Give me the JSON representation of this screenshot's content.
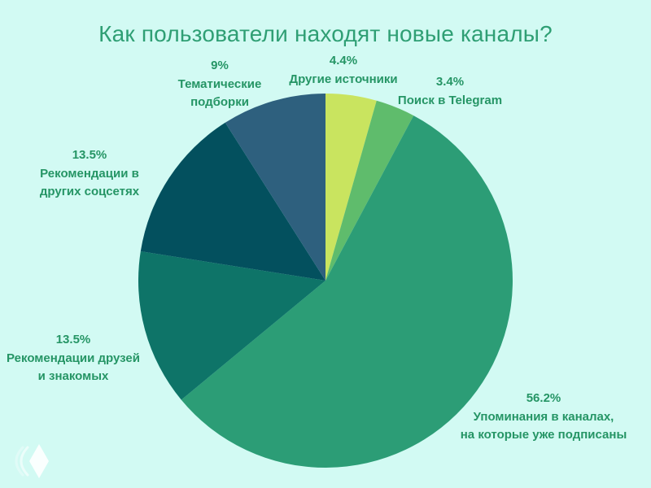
{
  "title": "Как пользователи находят новые каналы?",
  "colors": {
    "background": "#d2faf3",
    "title": "#2f9f74",
    "label": "#259565",
    "logo": "#ffffff"
  },
  "chart_data": {
    "type": "pie",
    "title": "Как пользователи находят новые каналы?",
    "start_angle_deg": 0,
    "direction": "clockwise",
    "legend_position": "none",
    "slices": [
      {
        "label": "Другие источники",
        "pct_label": "4.4%",
        "value": 4.4,
        "color": "#c9e45f",
        "lines": [
          "Другие источники"
        ]
      },
      {
        "label": "Поиск в Telegram",
        "pct_label": "3.4%",
        "value": 3.4,
        "color": "#5fbc6c",
        "lines": [
          "Поиск в Telegram"
        ]
      },
      {
        "label": "Упоминания в каналах, на которые уже подписаны",
        "pct_label": "56.2%",
        "value": 56.2,
        "color": "#2c9d76",
        "lines": [
          "Упоминания в каналах,",
          "на которые уже подписаны"
        ]
      },
      {
        "label": "Рекомендации друзей и знакомых",
        "pct_label": "13.5%",
        "value": 13.5,
        "color": "#0e7468",
        "lines": [
          "Рекомендации друзей",
          "и знакомых"
        ]
      },
      {
        "label": "Рекомендации в других соцсетях",
        "pct_label": "13.5%",
        "value": 13.5,
        "color": "#03505e",
        "lines": [
          "Рекомендации в",
          "других соцсетях"
        ]
      },
      {
        "label": "Тематические подборки",
        "pct_label": "9%",
        "value": 9.0,
        "color": "#2e607e",
        "lines": [
          "Тематические",
          "подборки"
        ]
      }
    ]
  }
}
